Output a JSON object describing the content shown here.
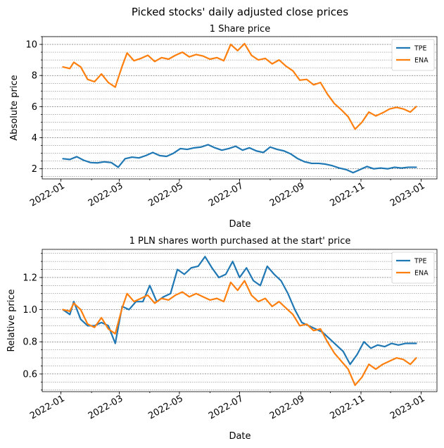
{
  "figure": {
    "suptitle": "Picked stocks' daily adjusted close prices"
  },
  "colors": {
    "TPE": "#1f77b4",
    "ENA": "#ff7f0e"
  },
  "chart_data": [
    {
      "type": "line",
      "title": "1 Share price",
      "xlabel": "Date",
      "ylabel": "Absolute price",
      "x_ticks": [
        "2022-01",
        "2022-03",
        "2022-05",
        "2022-07",
        "2022-09",
        "2022-11",
        "2023-01"
      ],
      "y_ticks": [
        2,
        4,
        6,
        8,
        10
      ],
      "ylim": [
        1.35,
        10.5
      ],
      "grid": "horizontal dotted, major and minor",
      "legend": "top-right",
      "series": [
        {
          "name": "TPE",
          "points": [
            [
              "2022-01-03",
              2.65
            ],
            [
              "2022-01-10",
              2.6
            ],
            [
              "2022-01-17",
              2.78
            ],
            [
              "2022-01-24",
              2.55
            ],
            [
              "2022-01-31",
              2.4
            ],
            [
              "2022-02-07",
              2.38
            ],
            [
              "2022-02-14",
              2.45
            ],
            [
              "2022-02-21",
              2.4
            ],
            [
              "2022-02-28",
              2.1
            ],
            [
              "2022-03-07",
              2.65
            ],
            [
              "2022-03-14",
              2.75
            ],
            [
              "2022-03-21",
              2.7
            ],
            [
              "2022-03-28",
              2.85
            ],
            [
              "2022-04-04",
              3.05
            ],
            [
              "2022-04-11",
              2.85
            ],
            [
              "2022-04-18",
              2.8
            ],
            [
              "2022-04-25",
              3.0
            ],
            [
              "2022-05-02",
              3.3
            ],
            [
              "2022-05-09",
              3.25
            ],
            [
              "2022-05-16",
              3.35
            ],
            [
              "2022-05-23",
              3.4
            ],
            [
              "2022-05-30",
              3.55
            ],
            [
              "2022-06-06",
              3.35
            ],
            [
              "2022-06-13",
              3.2
            ],
            [
              "2022-06-20",
              3.3
            ],
            [
              "2022-06-27",
              3.45
            ],
            [
              "2022-07-04",
              3.2
            ],
            [
              "2022-07-11",
              3.35
            ],
            [
              "2022-07-18",
              3.15
            ],
            [
              "2022-07-25",
              3.05
            ],
            [
              "2022-08-01",
              3.4
            ],
            [
              "2022-08-08",
              3.25
            ],
            [
              "2022-08-15",
              3.15
            ],
            [
              "2022-08-22",
              2.95
            ],
            [
              "2022-08-29",
              2.65
            ],
            [
              "2022-09-05",
              2.45
            ],
            [
              "2022-09-12",
              2.35
            ],
            [
              "2022-09-19",
              2.35
            ],
            [
              "2022-09-26",
              2.3
            ],
            [
              "2022-10-03",
              2.2
            ],
            [
              "2022-10-10",
              2.05
            ],
            [
              "2022-10-17",
              1.95
            ],
            [
              "2022-10-24",
              1.75
            ],
            [
              "2022-10-31",
              1.95
            ],
            [
              "2022-11-07",
              2.15
            ],
            [
              "2022-11-14",
              2.0
            ],
            [
              "2022-11-21",
              2.05
            ],
            [
              "2022-11-28",
              2.0
            ],
            [
              "2022-12-05",
              2.1
            ],
            [
              "2022-12-12",
              2.05
            ],
            [
              "2022-12-19",
              2.1
            ],
            [
              "2022-12-27",
              2.1
            ]
          ]
        },
        {
          "name": "ENA",
          "points": [
            [
              "2022-01-03",
              8.55
            ],
            [
              "2022-01-10",
              8.45
            ],
            [
              "2022-01-14",
              8.85
            ],
            [
              "2022-01-21",
              8.55
            ],
            [
              "2022-01-28",
              7.75
            ],
            [
              "2022-02-04",
              7.6
            ],
            [
              "2022-02-11",
              8.1
            ],
            [
              "2022-02-18",
              7.55
            ],
            [
              "2022-02-25",
              7.25
            ],
            [
              "2022-03-04",
              8.6
            ],
            [
              "2022-03-09",
              9.45
            ],
            [
              "2022-03-16",
              8.95
            ],
            [
              "2022-03-23",
              9.1
            ],
            [
              "2022-03-30",
              9.3
            ],
            [
              "2022-04-06",
              8.9
            ],
            [
              "2022-04-13",
              9.15
            ],
            [
              "2022-04-20",
              9.05
            ],
            [
              "2022-04-27",
              9.3
            ],
            [
              "2022-05-04",
              9.5
            ],
            [
              "2022-05-11",
              9.2
            ],
            [
              "2022-05-18",
              9.35
            ],
            [
              "2022-05-25",
              9.25
            ],
            [
              "2022-06-01",
              9.05
            ],
            [
              "2022-06-08",
              9.15
            ],
            [
              "2022-06-15",
              8.95
            ],
            [
              "2022-06-22",
              10.0
            ],
            [
              "2022-06-29",
              9.6
            ],
            [
              "2022-07-06",
              10.05
            ],
            [
              "2022-07-13",
              9.3
            ],
            [
              "2022-07-20",
              9.0
            ],
            [
              "2022-07-27",
              9.1
            ],
            [
              "2022-08-03",
              8.75
            ],
            [
              "2022-08-10",
              9.0
            ],
            [
              "2022-08-17",
              8.6
            ],
            [
              "2022-08-24",
              8.3
            ],
            [
              "2022-08-31",
              7.7
            ],
            [
              "2022-09-07",
              7.75
            ],
            [
              "2022-09-14",
              7.4
            ],
            [
              "2022-09-21",
              7.55
            ],
            [
              "2022-09-28",
              6.8
            ],
            [
              "2022-10-05",
              6.2
            ],
            [
              "2022-10-12",
              5.8
            ],
            [
              "2022-10-19",
              5.35
            ],
            [
              "2022-10-26",
              4.55
            ],
            [
              "2022-11-02",
              5.0
            ],
            [
              "2022-11-09",
              5.65
            ],
            [
              "2022-11-16",
              5.4
            ],
            [
              "2022-11-23",
              5.6
            ],
            [
              "2022-11-30",
              5.85
            ],
            [
              "2022-12-07",
              5.95
            ],
            [
              "2022-12-14",
              5.85
            ],
            [
              "2022-12-21",
              5.65
            ],
            [
              "2022-12-27",
              6.0
            ]
          ]
        }
      ]
    },
    {
      "type": "line",
      "title": "1 PLN shares worth purchased at the start' price",
      "xlabel": "Date",
      "ylabel": "Relative price",
      "x_ticks": [
        "2022-01",
        "2022-03",
        "2022-05",
        "2022-07",
        "2022-09",
        "2022-11",
        "2023-01"
      ],
      "y_ticks": [
        0.6,
        0.8,
        1.0,
        1.2
      ],
      "ylim": [
        0.49,
        1.375
      ],
      "grid": "horizontal dotted, major and minor",
      "legend": "top-right",
      "series": [
        {
          "name": "TPE",
          "points": [
            [
              "2022-01-03",
              1.0
            ],
            [
              "2022-01-10",
              0.97
            ],
            [
              "2022-01-14",
              1.05
            ],
            [
              "2022-01-21",
              0.94
            ],
            [
              "2022-01-28",
              0.9
            ],
            [
              "2022-02-04",
              0.9
            ],
            [
              "2022-02-11",
              0.92
            ],
            [
              "2022-02-18",
              0.9
            ],
            [
              "2022-02-25",
              0.79
            ],
            [
              "2022-03-04",
              1.02
            ],
            [
              "2022-03-11",
              1.0
            ],
            [
              "2022-03-18",
              1.05
            ],
            [
              "2022-03-25",
              1.05
            ],
            [
              "2022-04-01",
              1.15
            ],
            [
              "2022-04-08",
              1.05
            ],
            [
              "2022-04-15",
              1.08
            ],
            [
              "2022-04-22",
              1.1
            ],
            [
              "2022-04-29",
              1.25
            ],
            [
              "2022-05-06",
              1.22
            ],
            [
              "2022-05-13",
              1.26
            ],
            [
              "2022-05-20",
              1.27
            ],
            [
              "2022-05-27",
              1.33
            ],
            [
              "2022-06-03",
              1.26
            ],
            [
              "2022-06-10",
              1.2
            ],
            [
              "2022-06-17",
              1.22
            ],
            [
              "2022-06-24",
              1.3
            ],
            [
              "2022-07-01",
              1.2
            ],
            [
              "2022-07-08",
              1.26
            ],
            [
              "2022-07-15",
              1.18
            ],
            [
              "2022-07-22",
              1.15
            ],
            [
              "2022-07-29",
              1.27
            ],
            [
              "2022-08-05",
              1.22
            ],
            [
              "2022-08-12",
              1.18
            ],
            [
              "2022-08-19",
              1.1
            ],
            [
              "2022-08-26",
              1.0
            ],
            [
              "2022-09-02",
              0.92
            ],
            [
              "2022-09-09",
              0.9
            ],
            [
              "2022-09-16",
              0.88
            ],
            [
              "2022-09-23",
              0.86
            ],
            [
              "2022-09-30",
              0.82
            ],
            [
              "2022-10-07",
              0.78
            ],
            [
              "2022-10-14",
              0.74
            ],
            [
              "2022-10-21",
              0.66
            ],
            [
              "2022-10-28",
              0.72
            ],
            [
              "2022-11-04",
              0.8
            ],
            [
              "2022-11-11",
              0.76
            ],
            [
              "2022-11-18",
              0.78
            ],
            [
              "2022-11-25",
              0.77
            ],
            [
              "2022-12-02",
              0.79
            ],
            [
              "2022-12-09",
              0.78
            ],
            [
              "2022-12-16",
              0.79
            ],
            [
              "2022-12-27",
              0.79
            ]
          ]
        },
        {
          "name": "ENA",
          "points": [
            [
              "2022-01-03",
              1.0
            ],
            [
              "2022-01-10",
              0.99
            ],
            [
              "2022-01-14",
              1.04
            ],
            [
              "2022-01-21",
              1.0
            ],
            [
              "2022-01-28",
              0.91
            ],
            [
              "2022-02-04",
              0.89
            ],
            [
              "2022-02-11",
              0.95
            ],
            [
              "2022-02-18",
              0.88
            ],
            [
              "2022-02-25",
              0.85
            ],
            [
              "2022-03-04",
              1.01
            ],
            [
              "2022-03-09",
              1.1
            ],
            [
              "2022-03-16",
              1.05
            ],
            [
              "2022-03-23",
              1.07
            ],
            [
              "2022-03-30",
              1.09
            ],
            [
              "2022-04-06",
              1.04
            ],
            [
              "2022-04-13",
              1.07
            ],
            [
              "2022-04-20",
              1.06
            ],
            [
              "2022-04-27",
              1.09
            ],
            [
              "2022-05-04",
              1.11
            ],
            [
              "2022-05-11",
              1.08
            ],
            [
              "2022-05-18",
              1.1
            ],
            [
              "2022-05-25",
              1.08
            ],
            [
              "2022-06-01",
              1.06
            ],
            [
              "2022-06-08",
              1.07
            ],
            [
              "2022-06-15",
              1.05
            ],
            [
              "2022-06-22",
              1.17
            ],
            [
              "2022-06-29",
              1.12
            ],
            [
              "2022-07-06",
              1.18
            ],
            [
              "2022-07-13",
              1.09
            ],
            [
              "2022-07-20",
              1.05
            ],
            [
              "2022-07-27",
              1.07
            ],
            [
              "2022-08-03",
              1.02
            ],
            [
              "2022-08-10",
              1.05
            ],
            [
              "2022-08-17",
              1.01
            ],
            [
              "2022-08-24",
              0.97
            ],
            [
              "2022-08-31",
              0.9
            ],
            [
              "2022-09-07",
              0.91
            ],
            [
              "2022-09-14",
              0.87
            ],
            [
              "2022-09-21",
              0.88
            ],
            [
              "2022-09-28",
              0.8
            ],
            [
              "2022-10-05",
              0.73
            ],
            [
              "2022-10-12",
              0.68
            ],
            [
              "2022-10-19",
              0.63
            ],
            [
              "2022-10-26",
              0.53
            ],
            [
              "2022-11-02",
              0.58
            ],
            [
              "2022-11-09",
              0.66
            ],
            [
              "2022-11-16",
              0.63
            ],
            [
              "2022-11-23",
              0.66
            ],
            [
              "2022-11-30",
              0.68
            ],
            [
              "2022-12-07",
              0.7
            ],
            [
              "2022-12-14",
              0.69
            ],
            [
              "2022-12-21",
              0.66
            ],
            [
              "2022-12-27",
              0.7
            ]
          ]
        }
      ]
    }
  ]
}
